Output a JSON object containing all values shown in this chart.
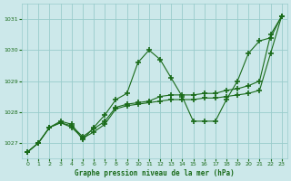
{
  "title": "Graphe pression niveau de la mer (hPa)",
  "bg_color": "#cce8ea",
  "grid_color": "#99cccc",
  "line_color": "#1a6b1a",
  "marker_color": "#1a6b1a",
  "xlim": [
    -0.5,
    23.5
  ],
  "ylim": [
    1026.5,
    1031.5
  ],
  "yticks": [
    1027,
    1028,
    1029,
    1030,
    1031
  ],
  "xtick_labels": [
    "0",
    "1",
    "2",
    "3",
    "4",
    "5",
    "6",
    "7",
    "8",
    "9",
    "10",
    "11",
    "12",
    "13",
    "14",
    "15",
    "16",
    "17",
    "18",
    "19",
    "20",
    "21",
    "22",
    "23"
  ],
  "series": [
    [
      1026.7,
      1027.0,
      1027.5,
      1027.7,
      1027.6,
      1027.1,
      1027.5,
      1027.9,
      1028.4,
      1028.6,
      1029.6,
      1030.0,
      1029.7,
      1029.1,
      1028.5,
      1027.7,
      1027.7,
      1027.7,
      1028.4,
      1029.0,
      1029.9,
      1030.3,
      1030.4,
      1031.1
    ],
    [
      1026.7,
      1027.0,
      1027.5,
      1027.65,
      1027.55,
      1027.2,
      1027.45,
      1027.7,
      1028.15,
      1028.25,
      1028.3,
      1028.35,
      1028.5,
      1028.55,
      1028.55,
      1028.55,
      1028.6,
      1028.6,
      1028.7,
      1028.75,
      1028.85,
      1029.0,
      1030.5,
      1031.1
    ],
    [
      1026.7,
      1027.0,
      1027.5,
      1027.65,
      1027.5,
      1027.15,
      1027.35,
      1027.6,
      1028.1,
      1028.2,
      1028.25,
      1028.3,
      1028.35,
      1028.4,
      1028.4,
      1028.4,
      1028.45,
      1028.45,
      1028.5,
      1028.55,
      1028.6,
      1028.7,
      1029.9,
      1031.1
    ]
  ]
}
